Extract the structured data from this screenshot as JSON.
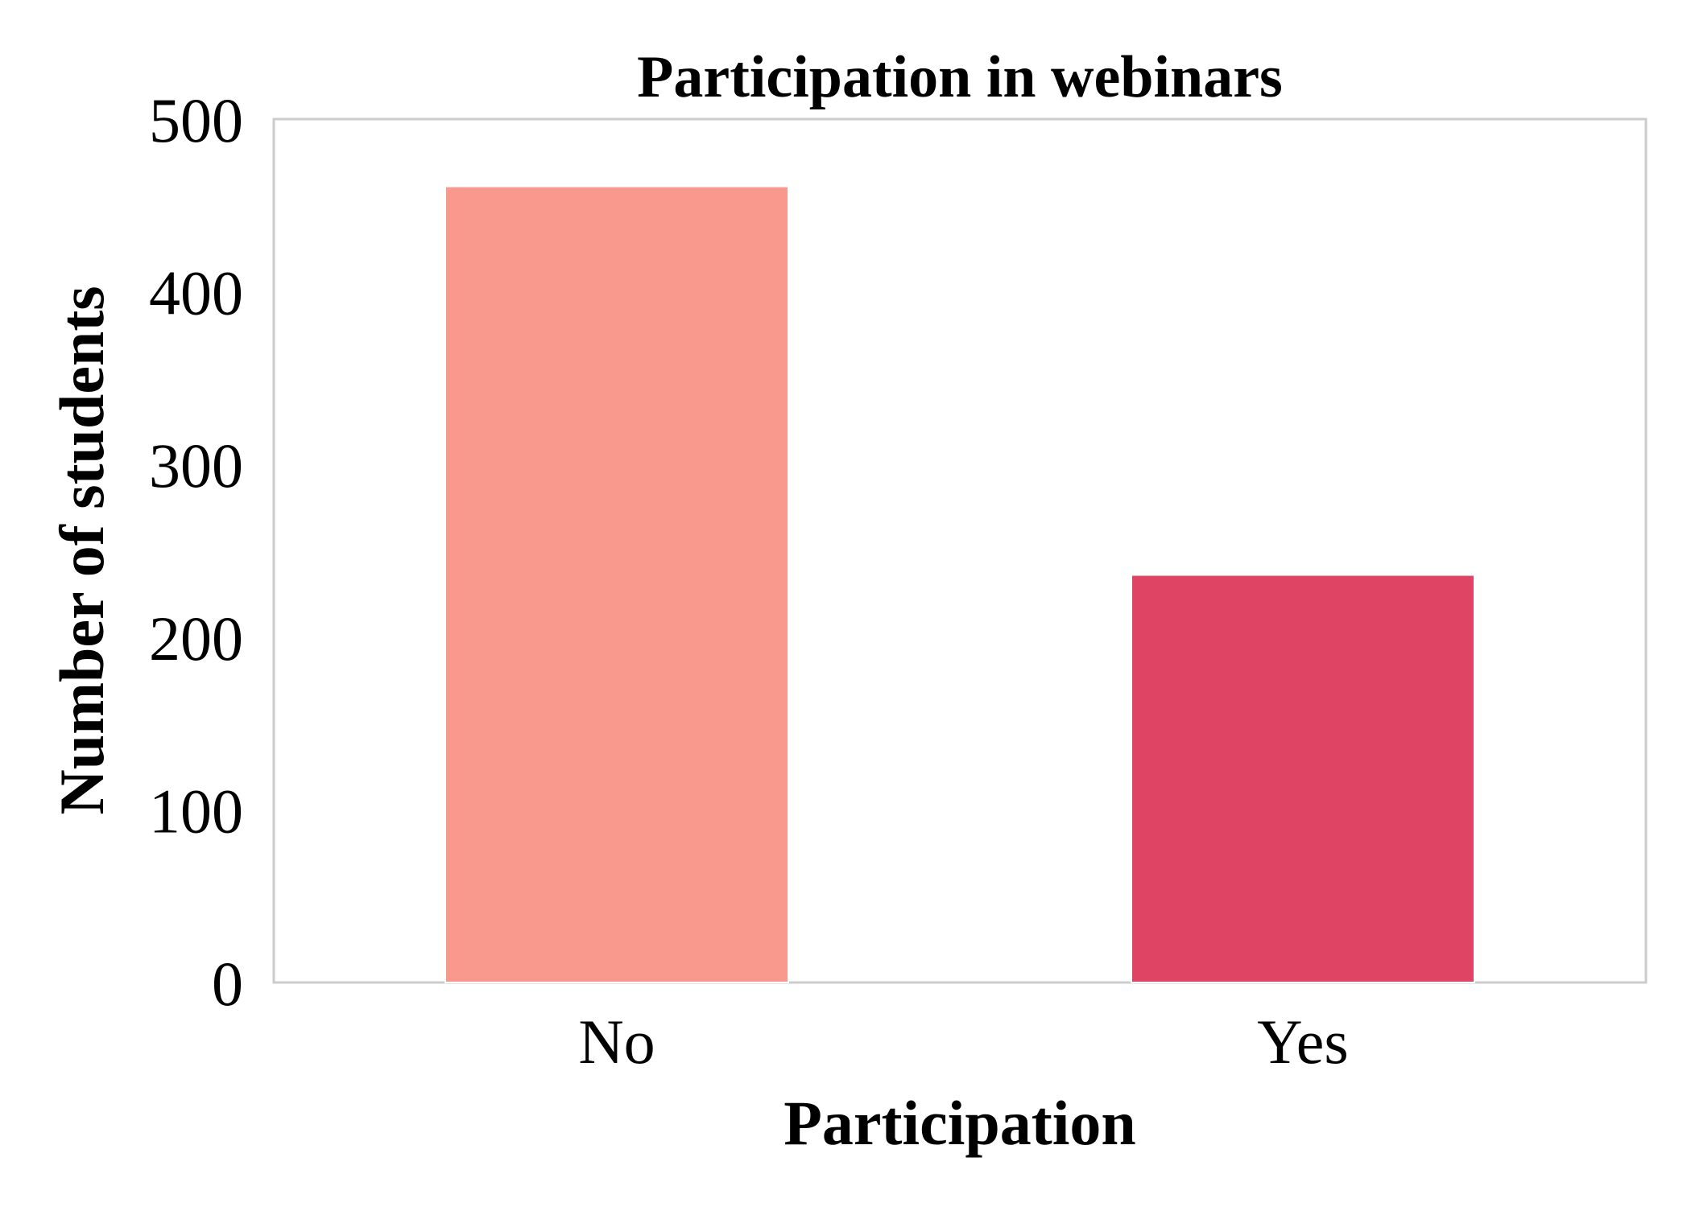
{
  "chart_data": {
    "type": "bar",
    "title": "Participation in webinars",
    "xlabel": "Participation",
    "ylabel": "Number of students",
    "categories": [
      "No",
      "Yes"
    ],
    "values": [
      461,
      236
    ],
    "colors": [
      "#F9998E",
      "#E04464"
    ],
    "ylim": [
      0,
      500
    ],
    "yticks": [
      "0",
      "100",
      "200",
      "300",
      "400",
      "500"
    ],
    "grid": false,
    "legend": "none",
    "frame_color": "#CCCCCC"
  }
}
